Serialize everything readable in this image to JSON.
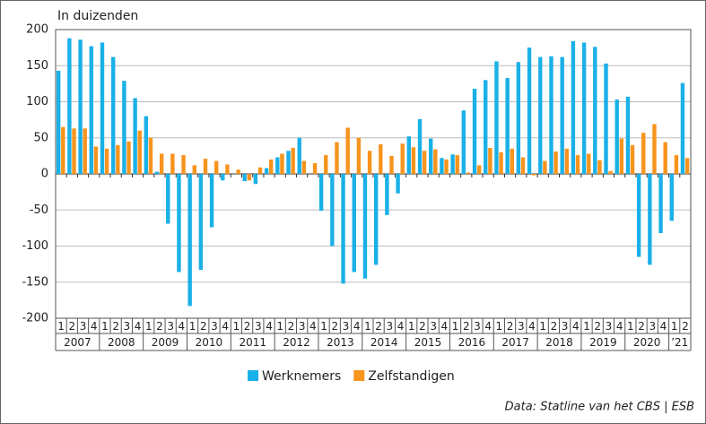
{
  "chart_data": {
    "type": "bar",
    "title": "In duizenden",
    "source": "Data: Statline van het CBS | ESB",
    "categories": [
      "1",
      "2",
      "3",
      "4",
      "1",
      "2",
      "3",
      "4",
      "1",
      "2",
      "3",
      "4",
      "1",
      "2",
      "3",
      "4",
      "1",
      "2",
      "3",
      "4",
      "1",
      "2",
      "3",
      "4",
      "1",
      "2",
      "3",
      "4",
      "1",
      "2",
      "3",
      "4",
      "1",
      "2",
      "3",
      "4",
      "1",
      "2",
      "3",
      "4",
      "1",
      "2",
      "3",
      "4",
      "1",
      "2",
      "3",
      "4",
      "1",
      "2",
      "3",
      "4",
      "1",
      "2",
      "3",
      "4",
      "1",
      "2"
    ],
    "years": [
      "2007",
      "2008",
      "2009",
      "2010",
      "2011",
      "2012",
      "2013",
      "2014",
      "2015",
      "2016",
      "2017",
      "2018",
      "2019",
      "2020",
      "’21"
    ],
    "series": [
      {
        "name": "Werknemers",
        "color": "#1ab0e8",
        "values": [
          143,
          188,
          186,
          177,
          182,
          162,
          129,
          105,
          80,
          3,
          -69,
          -136,
          -183,
          -133,
          -74,
          -9,
          0,
          -10,
          -14,
          8,
          23,
          32,
          50,
          0,
          -51,
          -100,
          -152,
          -136,
          -145,
          -126,
          -57,
          -27,
          52,
          76,
          49,
          22,
          27,
          88,
          118,
          130,
          156,
          133,
          155,
          175,
          162,
          163,
          162,
          184,
          182,
          176,
          153,
          103,
          107,
          -115,
          -126,
          -82,
          -65,
          126
        ]
      },
      {
        "name": "Zelfstandigen",
        "color": "#f7941d",
        "values": [
          65,
          63,
          63,
          38,
          35,
          40,
          45,
          60,
          50,
          28,
          28,
          26,
          12,
          21,
          18,
          13,
          6,
          -9,
          9,
          20,
          28,
          36,
          18,
          15,
          26,
          44,
          64,
          50,
          32,
          41,
          25,
          42,
          37,
          32,
          34,
          20,
          26,
          2,
          12,
          36,
          30,
          35,
          23,
          -2,
          18,
          31,
          35,
          26,
          28,
          19,
          4,
          49,
          40,
          57,
          69,
          44,
          26,
          22
        ]
      }
    ],
    "ylim": [
      -200,
      200
    ],
    "yticks": [
      -200,
      -150,
      -100,
      -50,
      0,
      50,
      100,
      150,
      200
    ],
    "grid": true
  }
}
